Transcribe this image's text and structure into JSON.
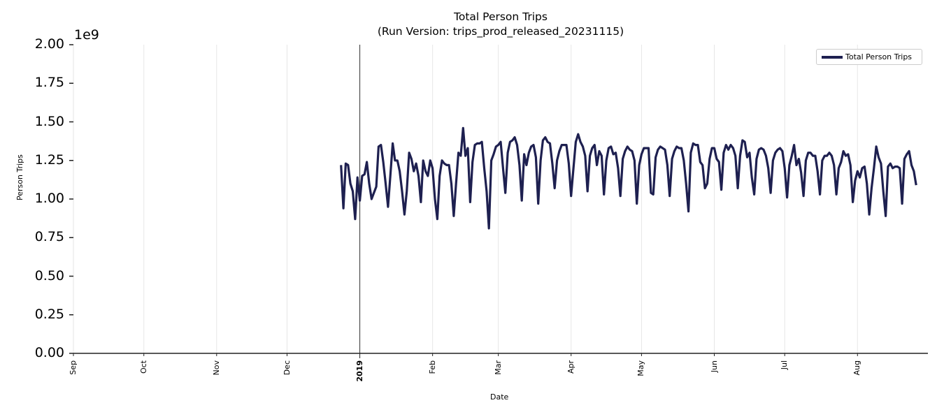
{
  "chart_data": {
    "type": "line",
    "title": "Total Person Trips",
    "subtitle": "(Run Version: trips_prod_released_20231115)",
    "xlabel": "Date",
    "ylabel": "Person Trips",
    "y_offset_text": "1e9",
    "ylim": [
      0,
      2000000000
    ],
    "xlim": [
      "2018-09-01",
      "2019-08-31"
    ],
    "grid": {
      "x": true,
      "y": false
    },
    "legend": {
      "position": "upper right",
      "entries": [
        "Total Person Trips"
      ]
    },
    "line_color": "#1e2050",
    "vline": {
      "date": "2019-01-01",
      "color": "#333333"
    },
    "yticks": [
      "0.00",
      "0.25",
      "0.50",
      "0.75",
      "1.00",
      "1.25",
      "1.50",
      "1.75",
      "2.00"
    ],
    "xticks": [
      {
        "label": "Sep",
        "date": "2018-09-01",
        "bold": false
      },
      {
        "label": "Oct",
        "date": "2018-10-01",
        "bold": false
      },
      {
        "label": "Nov",
        "date": "2018-11-01",
        "bold": false
      },
      {
        "label": "Dec",
        "date": "2018-12-01",
        "bold": false
      },
      {
        "label": "2019",
        "date": "2019-01-01",
        "bold": true
      },
      {
        "label": "Feb",
        "date": "2019-02-01",
        "bold": false
      },
      {
        "label": "Mar",
        "date": "2019-03-01",
        "bold": false
      },
      {
        "label": "Apr",
        "date": "2019-04-01",
        "bold": false
      },
      {
        "label": "May",
        "date": "2019-05-01",
        "bold": false
      },
      {
        "label": "Jun",
        "date": "2019-06-01",
        "bold": false
      },
      {
        "label": "Jul",
        "date": "2019-07-01",
        "bold": false
      },
      {
        "label": "Aug",
        "date": "2019-08-01",
        "bold": false
      }
    ],
    "series": [
      {
        "name": "Total Person Trips",
        "start_date": "2018-12-24",
        "unit": "1e9",
        "values": [
          1.22,
          0.94,
          1.23,
          1.22,
          1.1,
          1.05,
          0.87,
          1.14,
          0.99,
          1.15,
          1.16,
          1.24,
          1.1,
          1.0,
          1.04,
          1.08,
          1.34,
          1.35,
          1.24,
          1.1,
          0.95,
          1.15,
          1.36,
          1.25,
          1.25,
          1.18,
          1.05,
          0.9,
          1.05,
          1.3,
          1.26,
          1.18,
          1.23,
          1.15,
          0.98,
          1.25,
          1.18,
          1.15,
          1.25,
          1.2,
          1.0,
          0.87,
          1.15,
          1.25,
          1.23,
          1.22,
          1.22,
          1.1,
          0.89,
          1.1,
          1.3,
          1.28,
          1.46,
          1.28,
          1.33,
          0.98,
          1.24,
          1.35,
          1.36,
          1.36,
          1.37,
          1.2,
          1.05,
          0.81,
          1.25,
          1.29,
          1.34,
          1.35,
          1.37,
          1.2,
          1.04,
          1.3,
          1.37,
          1.38,
          1.4,
          1.35,
          1.22,
          0.99,
          1.29,
          1.22,
          1.3,
          1.34,
          1.35,
          1.27,
          0.97,
          1.25,
          1.38,
          1.4,
          1.37,
          1.36,
          1.23,
          1.07,
          1.25,
          1.31,
          1.35,
          1.35,
          1.35,
          1.23,
          1.02,
          1.2,
          1.37,
          1.42,
          1.37,
          1.34,
          1.28,
          1.05,
          1.28,
          1.33,
          1.35,
          1.22,
          1.31,
          1.28,
          1.03,
          1.25,
          1.33,
          1.34,
          1.29,
          1.3,
          1.2,
          1.02,
          1.26,
          1.31,
          1.34,
          1.32,
          1.31,
          1.25,
          0.97,
          1.22,
          1.29,
          1.33,
          1.33,
          1.33,
          1.04,
          1.03,
          1.27,
          1.32,
          1.34,
          1.33,
          1.32,
          1.22,
          1.02,
          1.26,
          1.31,
          1.34,
          1.33,
          1.33,
          1.25,
          1.1,
          0.92,
          1.3,
          1.36,
          1.35,
          1.35,
          1.24,
          1.22,
          1.07,
          1.1,
          1.26,
          1.33,
          1.33,
          1.26,
          1.24,
          1.06,
          1.3,
          1.35,
          1.32,
          1.35,
          1.33,
          1.28,
          1.07,
          1.28,
          1.38,
          1.37,
          1.27,
          1.3,
          1.14,
          1.03,
          1.26,
          1.32,
          1.33,
          1.32,
          1.28,
          1.2,
          1.04,
          1.25,
          1.3,
          1.32,
          1.33,
          1.31,
          1.2,
          1.01,
          1.22,
          1.28,
          1.35,
          1.22,
          1.26,
          1.17,
          1.02,
          1.25,
          1.3,
          1.3,
          1.28,
          1.28,
          1.18,
          1.03,
          1.25,
          1.28,
          1.28,
          1.3,
          1.28,
          1.22,
          1.03,
          1.2,
          1.24,
          1.31,
          1.28,
          1.29,
          1.22,
          0.98,
          1.12,
          1.18,
          1.14,
          1.2,
          1.21,
          1.1,
          0.9,
          1.07,
          1.2,
          1.34,
          1.27,
          1.23,
          1.05,
          0.89,
          1.21,
          1.23,
          1.2,
          1.21,
          1.21,
          1.2,
          0.97,
          1.26,
          1.29,
          1.31,
          1.22,
          1.18,
          1.09
        ]
      }
    ]
  }
}
